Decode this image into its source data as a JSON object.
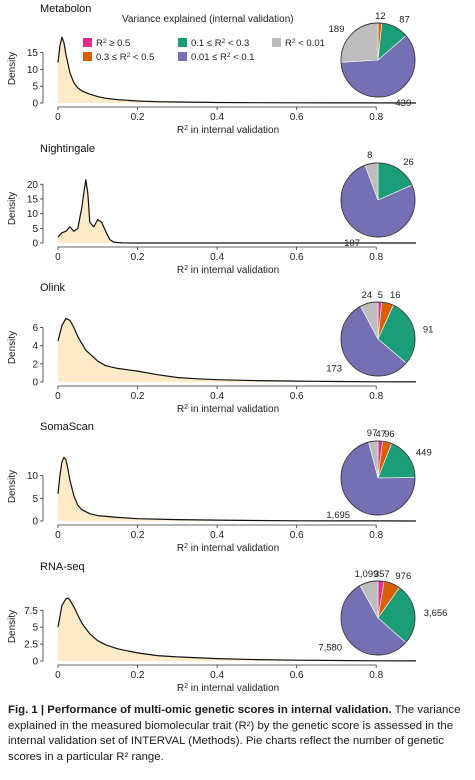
{
  "legend": {
    "title": "Variance explained (internal validation)",
    "items": [
      {
        "label": "R² ≥ 0.5",
        "color": "#e7298a"
      },
      {
        "label": "0.1 ≤ R² < 0.3",
        "color": "#1b9e77"
      },
      {
        "label": "R² < 0.01",
        "color": "#bdbdbd"
      },
      {
        "label": "0.3 ≤ R² < 0.5",
        "color": "#d95f02"
      },
      {
        "label": "0.01 ≤ R² < 0.1",
        "color": "#7570b3"
      }
    ]
  },
  "chart_data": [
    {
      "type": "area",
      "title": "Metabolon",
      "xlabel": "R² in internal validation",
      "ylabel": "Density",
      "xlim": [
        -0.02,
        0.9
      ],
      "ylim": [
        0,
        20.5
      ],
      "xticks": [
        0,
        0.2,
        0.4,
        0.6,
        0.8
      ],
      "xtick_labels": [
        "0",
        "0.2",
        "0.4",
        "0.6",
        "0.8"
      ],
      "yticks": [
        0,
        5,
        10,
        15
      ],
      "ytick_labels": [
        "0",
        "5",
        "10",
        "15"
      ],
      "x": [
        0,
        0.005,
        0.01,
        0.015,
        0.02,
        0.03,
        0.04,
        0.05,
        0.06,
        0.08,
        0.1,
        0.12,
        0.15,
        0.2,
        0.25,
        0.3,
        0.4,
        0.5,
        0.6,
        0.7,
        0.8,
        0.9
      ],
      "y": [
        12,
        17,
        19.5,
        18,
        14.5,
        9,
        6,
        4.5,
        3.6,
        2.6,
        1.9,
        1.4,
        1.0,
        0.6,
        0.4,
        0.3,
        0.15,
        0.08,
        0.05,
        0.03,
        0.02,
        0.01
      ],
      "pie": {
        "categories": [
          "R² ≥ 0.5",
          "0.3 ≤ R² < 0.5",
          "0.1 ≤ R² < 0.3",
          "0.01 ≤ R² < 0.1",
          "R² < 0.01"
        ],
        "values": [
          0,
          12,
          87,
          439,
          189
        ],
        "labels": [
          "",
          "12",
          "87",
          "439",
          "189"
        ]
      }
    },
    {
      "type": "area",
      "title": "Nightingale",
      "xlabel": "R² in internal validation",
      "ylabel": "Density",
      "xlim": [
        -0.02,
        0.9
      ],
      "ylim": [
        0,
        23.5
      ],
      "xticks": [
        0,
        0.2,
        0.4,
        0.6,
        0.8
      ],
      "xtick_labels": [
        "0",
        "0.2",
        "0.4",
        "0.6",
        "0.8"
      ],
      "yticks": [
        0,
        5,
        10,
        15,
        20
      ],
      "ytick_labels": [
        "0",
        "5",
        "10",
        "15",
        "20"
      ],
      "x": [
        0,
        0.01,
        0.02,
        0.03,
        0.04,
        0.05,
        0.06,
        0.065,
        0.07,
        0.075,
        0.08,
        0.09,
        0.1,
        0.11,
        0.12,
        0.13,
        0.14,
        0.16,
        0.2,
        0.3,
        0.4,
        0.5,
        0.6,
        0.7,
        0.8,
        0.9
      ],
      "y": [
        2,
        3.5,
        4,
        5.5,
        4,
        5,
        12,
        17,
        21.5,
        17,
        7,
        5.5,
        8,
        7,
        4,
        1.2,
        0.3,
        0.05,
        0,
        0,
        0,
        0,
        0,
        0,
        0,
        0
      ],
      "pie": {
        "categories": [
          "R² ≥ 0.5",
          "0.3 ≤ R² < 0.5",
          "0.1 ≤ R² < 0.3",
          "0.01 ≤ R² < 0.1",
          "R² < 0.01"
        ],
        "values": [
          0,
          0,
          26,
          107,
          8
        ],
        "labels": [
          "",
          "",
          "26",
          "107",
          "8"
        ]
      }
    },
    {
      "type": "area",
      "title": "Olink",
      "xlabel": "R² in internal validation",
      "ylabel": "Density",
      "xlim": [
        -0.02,
        0.9
      ],
      "ylim": [
        0,
        7.6
      ],
      "xticks": [
        0,
        0.2,
        0.4,
        0.6,
        0.8
      ],
      "xtick_labels": [
        "0",
        "0.2",
        "0.4",
        "0.6",
        "0.8"
      ],
      "yticks": [
        0,
        2,
        4,
        6
      ],
      "ytick_labels": [
        "0",
        "2",
        "4",
        "6"
      ],
      "x": [
        0,
        0.01,
        0.02,
        0.03,
        0.04,
        0.05,
        0.07,
        0.1,
        0.12,
        0.15,
        0.2,
        0.25,
        0.3,
        0.35,
        0.4,
        0.45,
        0.5,
        0.55,
        0.6,
        0.65,
        0.7,
        0.8,
        0.9
      ],
      "y": [
        4.5,
        6.2,
        7.0,
        6.8,
        6.0,
        5.0,
        3.5,
        2.3,
        1.8,
        1.5,
        1.2,
        0.8,
        0.5,
        0.35,
        0.25,
        0.2,
        0.15,
        0.12,
        0.1,
        0.08,
        0.05,
        0.02,
        0.01
      ],
      "pie": {
        "categories": [
          "R² ≥ 0.5",
          "0.3 ≤ R² < 0.5",
          "0.1 ≤ R² < 0.3",
          "0.01 ≤ R² < 0.1",
          "R² < 0.01"
        ],
        "values": [
          5,
          16,
          91,
          173,
          24
        ],
        "labels": [
          "5",
          "16",
          "91",
          "173",
          "24"
        ]
      }
    },
    {
      "type": "area",
      "title": "SomaScan",
      "xlabel": "R² in internal validation",
      "ylabel": "Density",
      "xlim": [
        -0.02,
        0.9
      ],
      "ylim": [
        0,
        15.2
      ],
      "xticks": [
        0,
        0.2,
        0.4,
        0.6,
        0.8
      ],
      "xtick_labels": [
        "0",
        "0.2",
        "0.4",
        "0.6",
        "0.8"
      ],
      "yticks": [
        0,
        5,
        10
      ],
      "ytick_labels": [
        "0",
        "5",
        "10"
      ],
      "x": [
        0,
        0.005,
        0.01,
        0.015,
        0.02,
        0.025,
        0.03,
        0.04,
        0.05,
        0.06,
        0.08,
        0.1,
        0.15,
        0.2,
        0.3,
        0.4,
        0.5,
        0.6,
        0.7,
        0.8,
        0.9
      ],
      "y": [
        6,
        10,
        13,
        14,
        13.5,
        11.5,
        9,
        5.5,
        3.5,
        2.5,
        1.6,
        1.2,
        0.8,
        0.5,
        0.3,
        0.2,
        0.1,
        0.05,
        0.03,
        0.02,
        0.01
      ],
      "pie": {
        "categories": [
          "R² ≥ 0.5",
          "0.3 ≤ R² < 0.5",
          "0.1 ≤ R² < 0.3",
          "0.01 ≤ R² < 0.1",
          "R² < 0.01"
        ],
        "values": [
          47,
          96,
          449,
          1695,
          97
        ],
        "labels": [
          "47",
          "96",
          "449",
          "1,695",
          "97"
        ]
      }
    },
    {
      "type": "area",
      "title": "RNA-seq",
      "xlabel": "R² in internal validation",
      "ylabel": "Density",
      "xlim": [
        -0.02,
        0.9
      ],
      "ylim": [
        0,
        10.2
      ],
      "xticks": [
        0,
        0.2,
        0.4,
        0.6,
        0.8
      ],
      "xtick_labels": [
        "0",
        "0.2",
        "0.4",
        "0.6",
        "0.8"
      ],
      "yticks": [
        0,
        2.5,
        5,
        7.5
      ],
      "ytick_labels": [
        "0",
        "2.5",
        "5",
        "7.5"
      ],
      "x": [
        0,
        0.01,
        0.02,
        0.025,
        0.03,
        0.04,
        0.05,
        0.06,
        0.08,
        0.1,
        0.12,
        0.15,
        0.2,
        0.25,
        0.3,
        0.4,
        0.5,
        0.6,
        0.7,
        0.8,
        0.9
      ],
      "y": [
        5,
        8.2,
        9.2,
        9.3,
        9.0,
        8.0,
        6.8,
        5.6,
        4.0,
        3.0,
        2.4,
        1.8,
        1.2,
        0.8,
        0.6,
        0.35,
        0.2,
        0.12,
        0.07,
        0.03,
        0.01
      ],
      "pie": {
        "categories": [
          "R² ≥ 0.5",
          "0.3 ≤ R² < 0.5",
          "0.1 ≤ R² < 0.3",
          "0.01 ≤ R² < 0.1",
          "R² < 0.01"
        ],
        "values": [
          357,
          976,
          3656,
          7580,
          1099
        ],
        "labels": [
          "357",
          "976",
          "3,656",
          "7,580",
          "1,099"
        ]
      }
    }
  ],
  "caption": {
    "title": "Fig. 1 | Performance of multi-omic genetic scores in internal validation.",
    "text": "The variance explained in the measured biomolecular trait (R²) by the genetic score is assessed in the internal validation set of INTERVAL (Methods). Pie charts reflect the number of genetic scores in a particular R² range."
  },
  "colors": {
    "area_fill": "#fdebc8",
    "curve": "#111111",
    "axis": "#333333"
  }
}
